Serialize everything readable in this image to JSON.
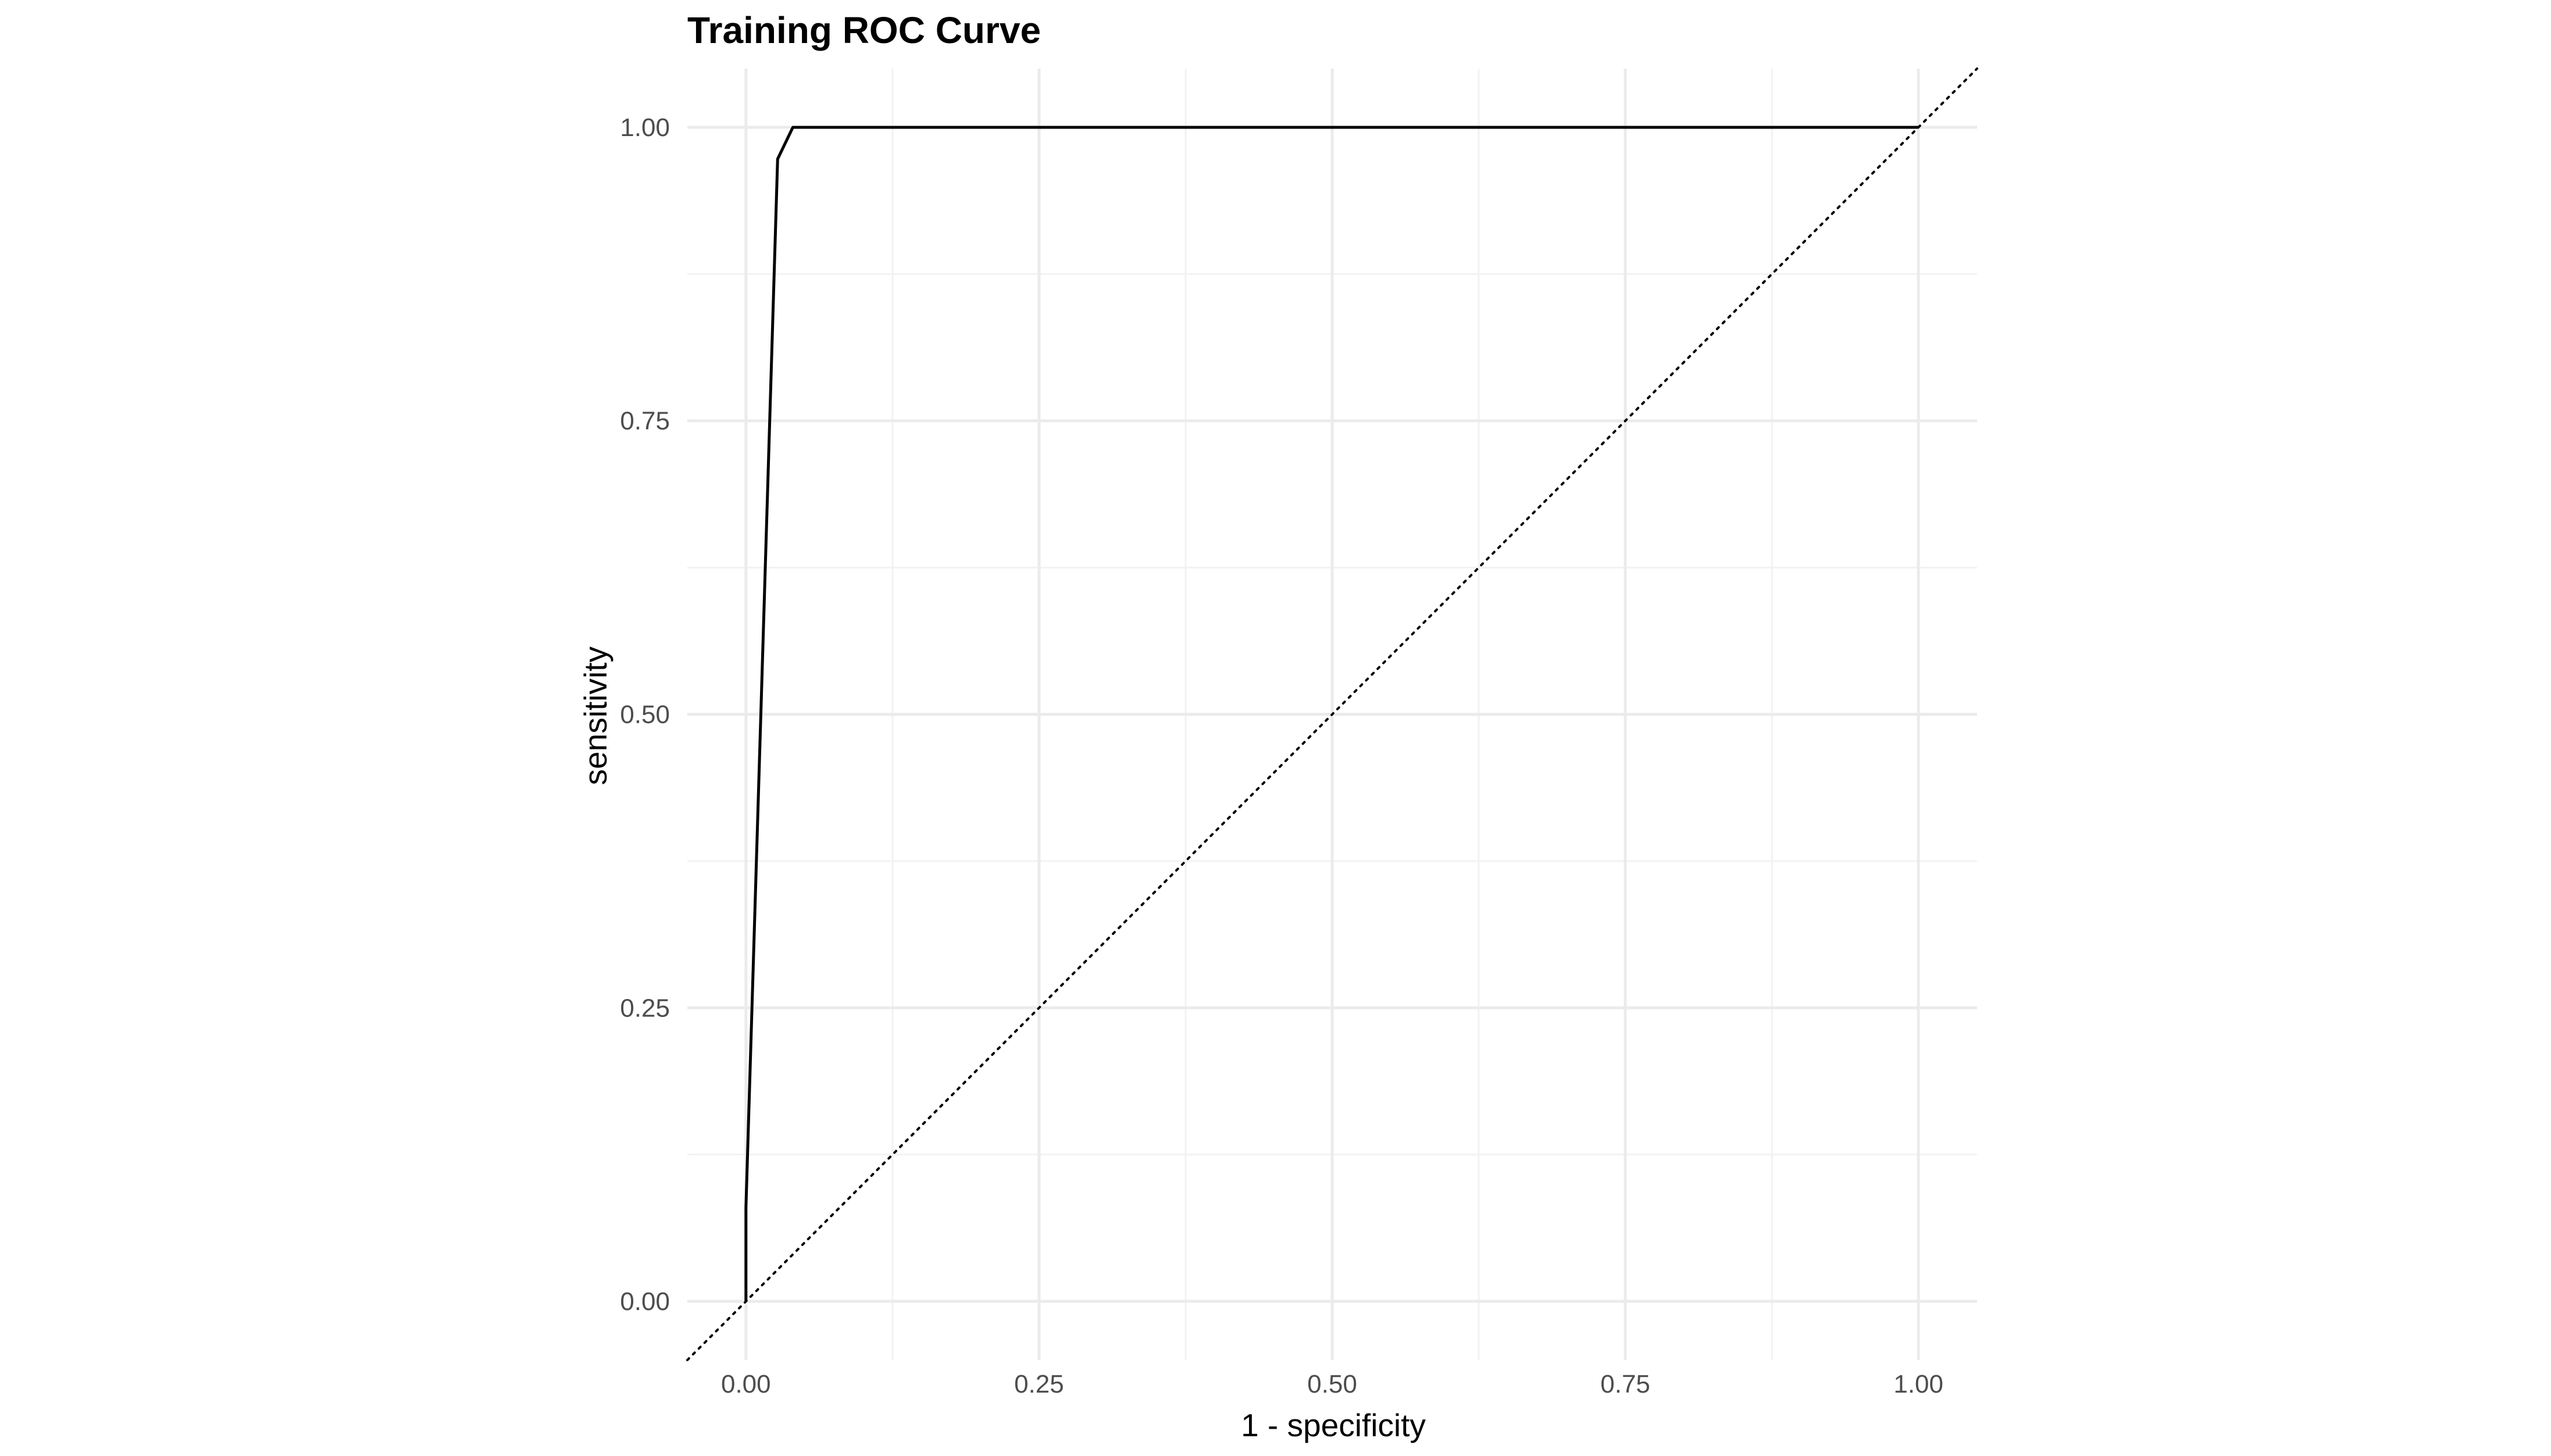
{
  "chart_data": {
    "type": "line",
    "title": "Training ROC Curve",
    "xlabel": "1 - specificity",
    "ylabel": "sensitivity",
    "xlim": [
      -0.05,
      1.05
    ],
    "ylim": [
      -0.05,
      1.05
    ],
    "x_ticks": [
      0.0,
      0.25,
      0.5,
      0.75,
      1.0
    ],
    "x_tick_labels": [
      "0.00",
      "0.25",
      "0.50",
      "0.75",
      "1.00"
    ],
    "y_ticks": [
      0.0,
      0.25,
      0.5,
      0.75,
      1.0
    ],
    "y_tick_labels": [
      "0.00",
      "0.25",
      "0.50",
      "0.75",
      "1.00"
    ],
    "grid": true,
    "legend": "none",
    "series": [
      {
        "x": [
          0.0,
          0.0,
          0.027,
          0.04,
          1.0
        ],
        "y": [
          0.0,
          0.08,
          0.973,
          1.0,
          1.0
        ],
        "color": "#000000",
        "style": "solid"
      }
    ],
    "reference_line": {
      "x": [
        -0.05,
        1.05
      ],
      "y": [
        -0.05,
        1.05
      ],
      "style": "dotted",
      "color": "#000000"
    }
  }
}
